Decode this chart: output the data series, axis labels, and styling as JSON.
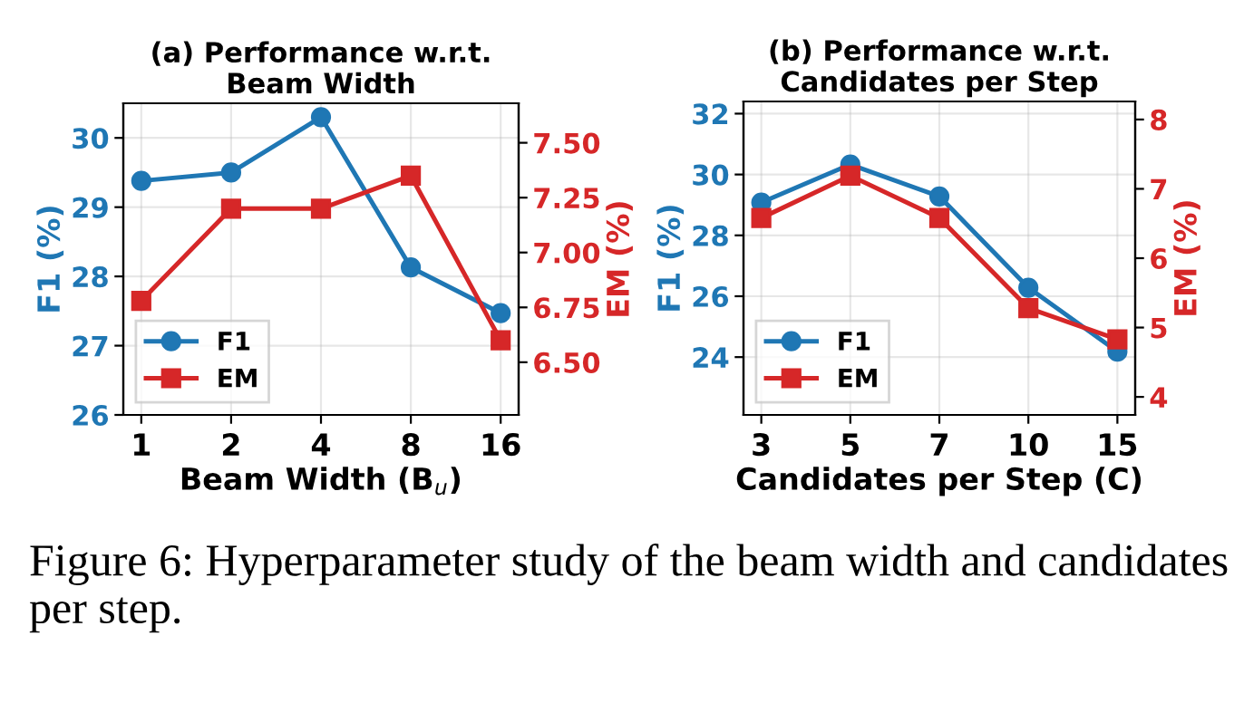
{
  "chart_data": [
    {
      "type": "line",
      "title": "(a) Performance w.r.t.\nBeam Width",
      "xlabel": "Beam Width (B$_{u}$)",
      "ylabel": "F1 (%)",
      "y2label": "EM (%)",
      "categories": [
        "1",
        "2",
        "4",
        "8",
        "16"
      ],
      "series": [
        {
          "name": "F1",
          "color": "#1f77b4",
          "marker": "circle",
          "values": [
            29.38,
            29.5,
            30.3,
            28.13,
            27.47
          ]
        },
        {
          "name": "EM",
          "color": "#d62728",
          "marker": "square",
          "axis": "y2",
          "values": [
            6.78,
            7.2,
            7.2,
            7.35,
            6.6
          ]
        }
      ],
      "ylim": [
        26,
        30.5
      ],
      "yticks": [
        26,
        27,
        28,
        29,
        30
      ],
      "y2lim": [
        6.26,
        7.68
      ],
      "y2ticks": [
        {
          "value": 6.5,
          "label": "6.50"
        },
        {
          "value": 6.75,
          "label": "6.75"
        },
        {
          "value": 7.0,
          "label": "7.00"
        },
        {
          "value": 7.25,
          "label": "7.25"
        },
        {
          "value": 7.5,
          "label": "7.50"
        }
      ],
      "grid": true,
      "legend": "bottom left"
    },
    {
      "type": "line",
      "title": "(b) Performance w.r.t.\nCandidates per Step",
      "xlabel": "Candidates per Step (C)",
      "ylabel": "F1 (%)",
      "y2label": "EM (%)",
      "categories": [
        "3",
        "5",
        "7",
        "10",
        "15"
      ],
      "series": [
        {
          "name": "F1",
          "color": "#1f77b4",
          "marker": "circle",
          "values": [
            29.08,
            30.33,
            29.28,
            26.28,
            24.18
          ]
        },
        {
          "name": "EM",
          "color": "#d62728",
          "marker": "square",
          "axis": "y2",
          "values": [
            6.58,
            7.19,
            6.58,
            5.28,
            4.83
          ]
        }
      ],
      "ylim": [
        22.1,
        32.4
      ],
      "yticks": [
        24,
        26,
        28,
        30,
        32
      ],
      "y2lim": [
        3.74,
        8.26
      ],
      "y2ticks": [
        4,
        5,
        6,
        7,
        8
      ],
      "grid": true,
      "legend": "bottom left",
      "annotations": [
        "Figure 6: Hyperparameter study of the beam width and candidates per step."
      ]
    }
  ]
}
